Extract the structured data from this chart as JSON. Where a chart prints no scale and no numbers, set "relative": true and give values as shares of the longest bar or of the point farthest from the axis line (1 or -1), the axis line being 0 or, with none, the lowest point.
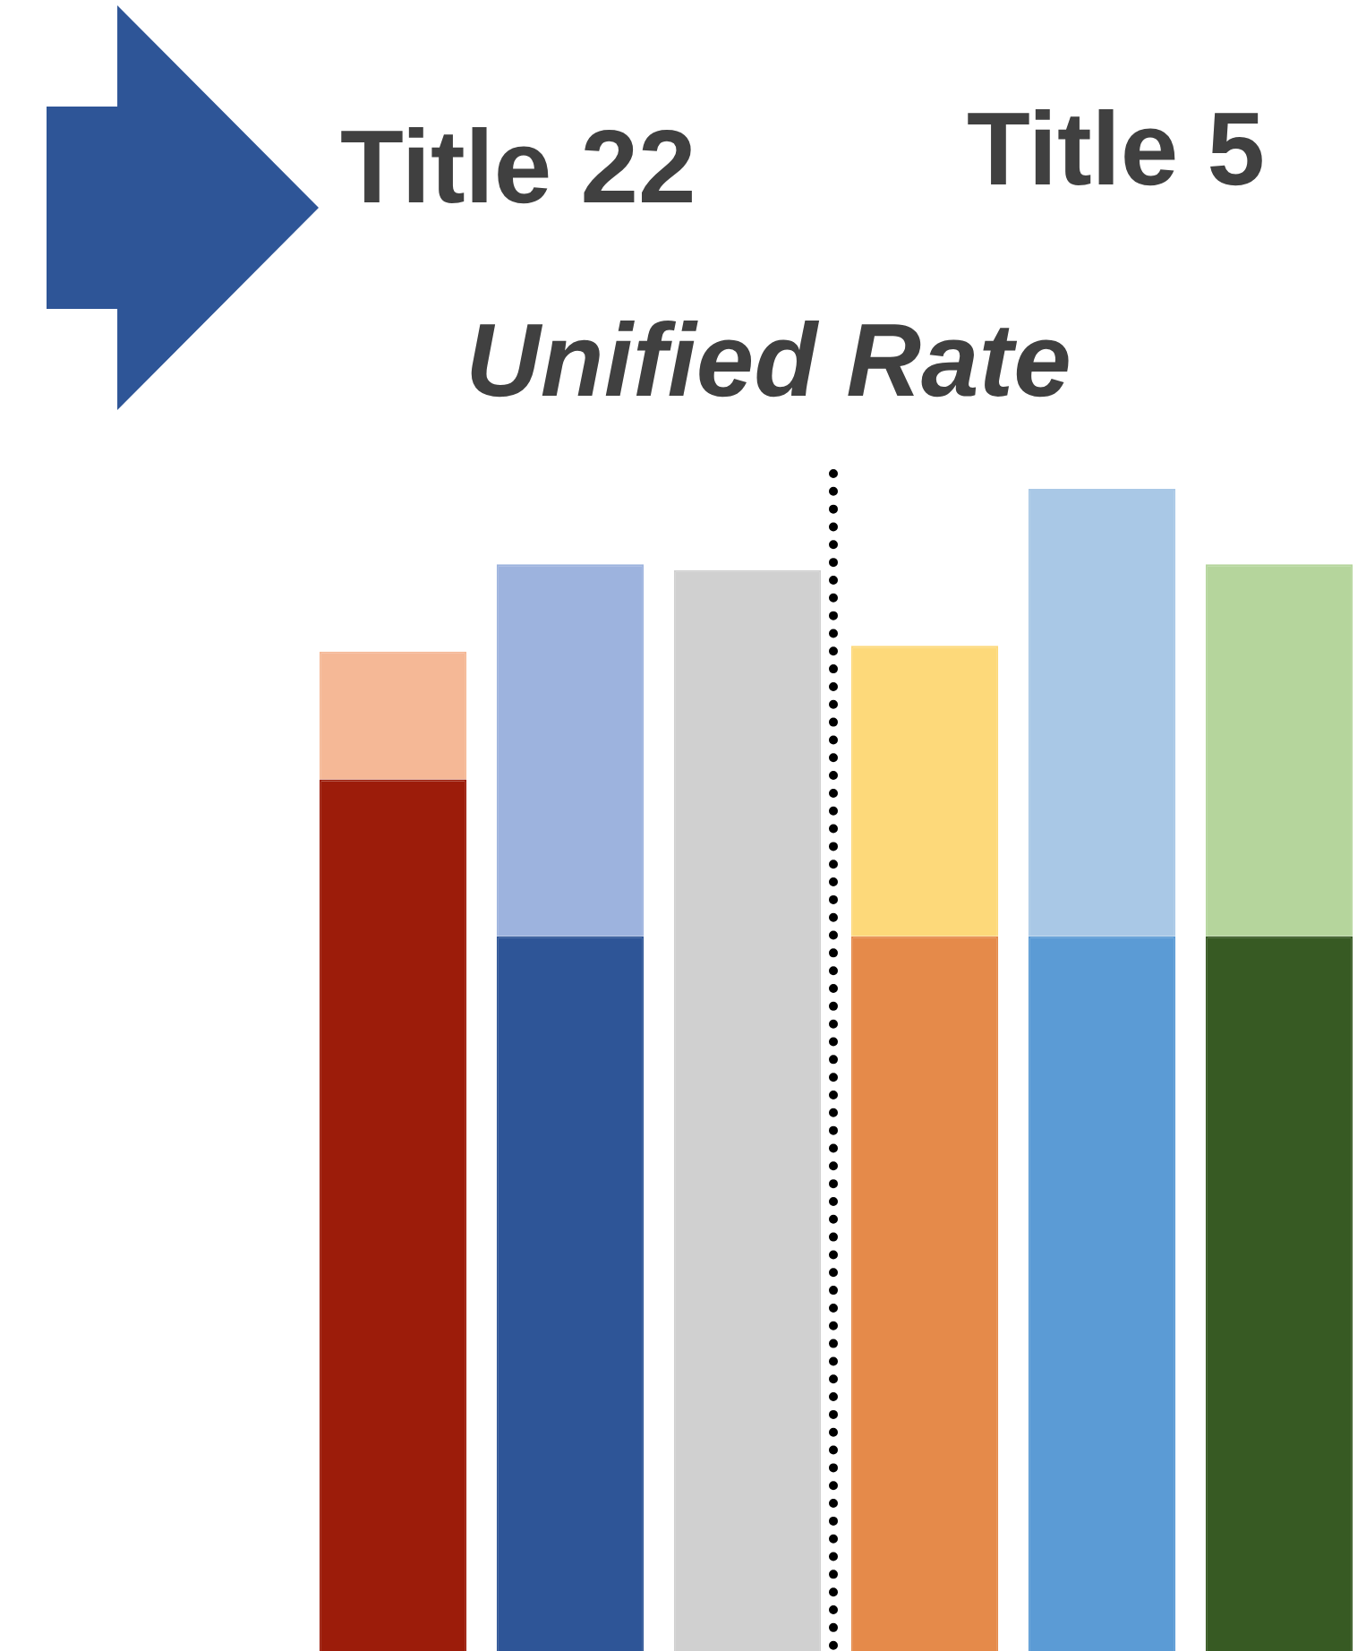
{
  "chart_data": {
    "type": "bar",
    "title": "Unified Rate",
    "annotations": [
      "Title 22",
      "Title 5"
    ],
    "categories": [
      null,
      null,
      null,
      null,
      null,
      null
    ],
    "relative": true,
    "stacked": true,
    "legend": false,
    "series": [
      {
        "colors": [
          "#9c1c0a",
          "#2e5597",
          "#d0d0d0",
          "#e58a4a",
          "#5b9bd5",
          "#375a23"
        ],
        "values": [
          0.75,
          0.615,
          0.93,
          0.615,
          0.615,
          0.615
        ]
      },
      {
        "colors": [
          "#f5b896",
          "#9db3de",
          "#d0d0d0",
          "#fdd97a",
          "#a9c8e6",
          "#b5d59c"
        ],
        "values": [
          0.11,
          0.32,
          null,
          0.25,
          0.385,
          0.32
        ]
      }
    ]
  }
}
